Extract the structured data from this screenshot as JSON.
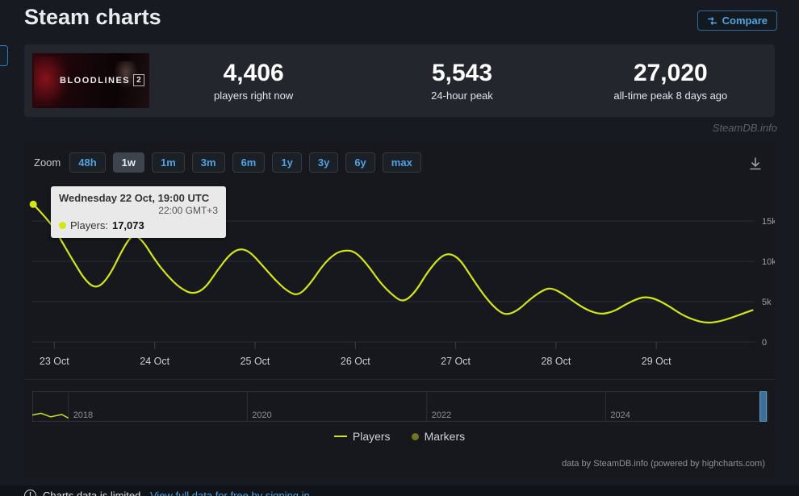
{
  "header": {
    "title": "Steam charts",
    "compare_label": "Compare"
  },
  "stats": {
    "thumbnail": {
      "title": "BLOODLINES",
      "number": "2"
    },
    "items": [
      {
        "value": "4,406",
        "label": "players right now"
      },
      {
        "value": "5,543",
        "label": "24-hour peak"
      },
      {
        "value": "27,020",
        "label": "all-time peak 8 days ago"
      }
    ]
  },
  "watermark": "SteamDB.info",
  "toolbar": {
    "zoom_label": "Zoom",
    "buttons": [
      "48h",
      "1w",
      "1m",
      "3m",
      "6m",
      "1y",
      "3y",
      "6y",
      "max"
    ],
    "selected": "1w"
  },
  "tooltip": {
    "title": "Wednesday 22 Oct, 19:00 UTC",
    "subtitle": "22:00 GMT+3",
    "series_label": "Players:",
    "value": "17,073"
  },
  "chart_data": {
    "type": "line",
    "x_unit": "day of October",
    "xlim": [
      22.78,
      29.98
    ],
    "ylim": [
      0,
      19400
    ],
    "grid": true,
    "legend_position": "bottom-center",
    "yticks": [
      [
        0,
        "0"
      ],
      [
        5000,
        "5k"
      ],
      [
        10000,
        "10k"
      ],
      [
        15000,
        "15k"
      ]
    ],
    "xticks": [
      [
        23,
        "23 Oct"
      ],
      [
        24,
        "24 Oct"
      ],
      [
        25,
        "25 Oct"
      ],
      [
        26,
        "26 Oct"
      ],
      [
        27,
        "27 Oct"
      ],
      [
        28,
        "28 Oct"
      ],
      [
        29,
        "29 Oct"
      ]
    ],
    "series": [
      {
        "name": "Players",
        "color": "#d3e515",
        "points": [
          [
            22.79,
            17073
          ],
          [
            22.95,
            15000
          ],
          [
            23.05,
            13000
          ],
          [
            23.18,
            10200
          ],
          [
            23.32,
            7400
          ],
          [
            23.43,
            6600
          ],
          [
            23.55,
            8200
          ],
          [
            23.68,
            11500
          ],
          [
            23.78,
            13400
          ],
          [
            23.88,
            12600
          ],
          [
            24.0,
            10200
          ],
          [
            24.12,
            8300
          ],
          [
            24.25,
            6700
          ],
          [
            24.38,
            5900
          ],
          [
            24.5,
            6600
          ],
          [
            24.62,
            8800
          ],
          [
            24.75,
            10900
          ],
          [
            24.85,
            11600
          ],
          [
            24.95,
            11200
          ],
          [
            25.08,
            9400
          ],
          [
            25.2,
            7700
          ],
          [
            25.32,
            6300
          ],
          [
            25.43,
            5700
          ],
          [
            25.55,
            7200
          ],
          [
            25.68,
            9600
          ],
          [
            25.8,
            11000
          ],
          [
            25.9,
            11400
          ],
          [
            26.0,
            11200
          ],
          [
            26.12,
            9600
          ],
          [
            26.25,
            7300
          ],
          [
            26.38,
            5700
          ],
          [
            26.48,
            4900
          ],
          [
            26.6,
            6200
          ],
          [
            26.72,
            8700
          ],
          [
            26.85,
            10600
          ],
          [
            26.94,
            11000
          ],
          [
            27.04,
            10300
          ],
          [
            27.15,
            8200
          ],
          [
            27.28,
            5800
          ],
          [
            27.4,
            4100
          ],
          [
            27.5,
            3300
          ],
          [
            27.62,
            3900
          ],
          [
            27.75,
            5400
          ],
          [
            27.88,
            6500
          ],
          [
            27.96,
            6700
          ],
          [
            28.08,
            5900
          ],
          [
            28.2,
            4800
          ],
          [
            28.32,
            3900
          ],
          [
            28.45,
            3400
          ],
          [
            28.58,
            3800
          ],
          [
            28.7,
            4700
          ],
          [
            28.82,
            5400
          ],
          [
            28.9,
            5600
          ],
          [
            29.0,
            5300
          ],
          [
            29.12,
            4500
          ],
          [
            29.25,
            3400
          ],
          [
            29.38,
            2700
          ],
          [
            29.5,
            2350
          ],
          [
            29.62,
            2500
          ],
          [
            29.75,
            3000
          ],
          [
            29.88,
            3600
          ],
          [
            29.96,
            3950
          ]
        ]
      }
    ],
    "marker_point": {
      "x": 22.79,
      "y": 17073
    },
    "legend": [
      {
        "label": "Players",
        "color": "#d3e515",
        "marker": "line"
      },
      {
        "label": "Markers",
        "color": "#6e7422",
        "marker": "circle"
      }
    ],
    "navigator": {
      "years": [
        [
          0.049,
          "2018"
        ],
        [
          0.292,
          "2020"
        ],
        [
          0.536,
          "2022"
        ],
        [
          0.779,
          "2024"
        ]
      ],
      "series": [
        [
          0,
          0.78
        ],
        [
          0.012,
          0.72
        ],
        [
          0.025,
          0.84
        ],
        [
          0.04,
          0.76
        ],
        [
          0.049,
          0.88
        ]
      ],
      "series_color": "#d3e515",
      "handle_pos": 0.993,
      "handle_color": "#3d6f97"
    }
  },
  "credits": "data by SteamDB.info (powered by highcharts.com)",
  "footer": {
    "warning_glyph": "!",
    "warning": "Charts data is limited.",
    "link": "View full data for free by signing in"
  }
}
